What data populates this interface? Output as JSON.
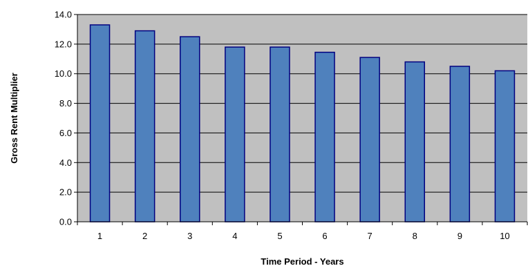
{
  "chart_data": {
    "type": "bar",
    "title": "",
    "xlabel": "Time Period - Years",
    "ylabel": "Gross Rent Multiplier",
    "categories": [
      "1",
      "2",
      "3",
      "4",
      "5",
      "6",
      "7",
      "8",
      "9",
      "10"
    ],
    "values": [
      13.3,
      12.9,
      12.5,
      11.8,
      11.8,
      11.45,
      11.1,
      10.8,
      10.5,
      10.2
    ],
    "ylim": [
      0,
      14
    ],
    "yticks": [
      "0.0",
      "2.0",
      "4.0",
      "6.0",
      "8.0",
      "10.0",
      "12.0",
      "14.0"
    ],
    "grid": true,
    "legend": "none",
    "colors": {
      "plot_background": "#c0c0c0",
      "bar_fill": "#4f81bd",
      "bar_stroke": "#000080",
      "gridline": "#000000"
    }
  }
}
